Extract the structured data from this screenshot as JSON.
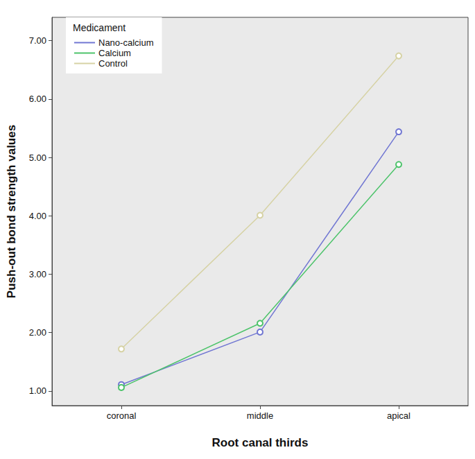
{
  "chart_data": {
    "type": "line",
    "title": "",
    "x_label": "Root canal thirds",
    "y_label": "Push-out bond strength values",
    "legend_title": "Medicament",
    "categories": [
      "coronal",
      "middle",
      "apical"
    ],
    "series": [
      {
        "name": "Nano-calcium",
        "color": "#7076d2",
        "values": [
          1.11,
          2.01,
          5.44
        ]
      },
      {
        "name": "Calcium",
        "color": "#4cc36a",
        "values": [
          1.06,
          2.16,
          4.88
        ]
      },
      {
        "name": "Control",
        "color": "#d6d2a4",
        "values": [
          1.72,
          4.01,
          6.74
        ]
      }
    ],
    "ylim": [
      0.75,
      7.4
    ],
    "yticks": [
      {
        "value": 1,
        "label": "1.00"
      },
      {
        "value": 2,
        "label": "2.00"
      },
      {
        "value": 3,
        "label": "3.00"
      },
      {
        "value": 4,
        "label": "4.00"
      },
      {
        "value": 5,
        "label": "5.00"
      },
      {
        "value": 6,
        "label": "6.00"
      },
      {
        "value": 7,
        "label": "7.00"
      }
    ],
    "grid": false,
    "legend": "upper left",
    "marker": "circle"
  }
}
